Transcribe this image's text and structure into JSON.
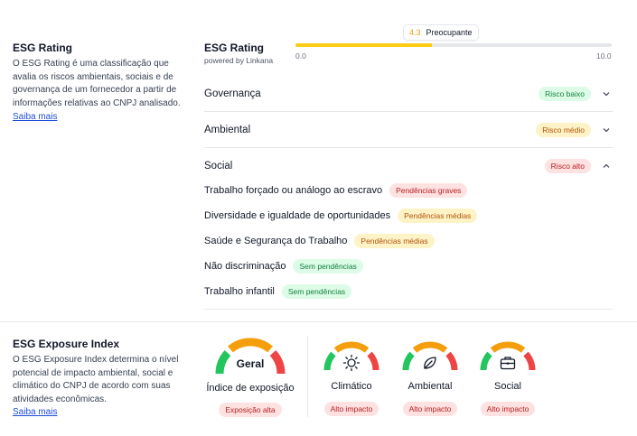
{
  "rating_section": {
    "title": "ESG Rating",
    "description": "O ESG Rating é uma classificação que avalia os riscos ambientais, sociais e de governança de um fornecedor a partir de informações relativas ao CNPJ analisado.",
    "link": "Saiba mais"
  },
  "rating_header": {
    "title": "ESG Rating",
    "powered": "powered by Linkana",
    "score": "4.3",
    "score_label": "Preocupante",
    "score_fraction": 0.43,
    "scale_min": "0.0",
    "scale_max": "10.0"
  },
  "accordion": [
    {
      "label": "Governança",
      "badge": "Risco baixo",
      "tone": "green",
      "expanded": false
    },
    {
      "label": "Ambiental",
      "badge": "Risco médio",
      "tone": "amber",
      "expanded": false
    },
    {
      "label": "Social",
      "badge": "Risco alto",
      "tone": "red",
      "expanded": true
    }
  ],
  "social_items": [
    {
      "label": "Trabalho forçado ou análogo ao escravo",
      "badge": "Pendências graves",
      "tone": "red"
    },
    {
      "label": "Diversidade e igualdade de oportunidades",
      "badge": "Pendências médias",
      "tone": "amber"
    },
    {
      "label": "Saúde e Segurança do Trabalho",
      "badge": "Pendências médias",
      "tone": "amber"
    },
    {
      "label": "Não discriminação",
      "badge": "Sem pendências",
      "tone": "green"
    },
    {
      "label": "Trabalho infantil",
      "badge": "Sem pendências",
      "tone": "green"
    }
  ],
  "exposure_section": {
    "title": "ESG Exposure Index",
    "description": "O ESG Exposure Index determina o nível potencial de impacto ambiental, social e climático do CNPJ de acordo com suas atividades econômicas.",
    "link": "Saiba mais"
  },
  "gauges": {
    "main": {
      "center": "Geral",
      "caption": "Índice de exposição",
      "badge": "Exposição alta"
    },
    "items": [
      {
        "caption": "Climático",
        "badge": "Alto impacto",
        "icon": "sun-icon"
      },
      {
        "caption": "Ambiental",
        "badge": "Alto impacto",
        "icon": "leaf-icon"
      },
      {
        "caption": "Social",
        "badge": "Alto impacto",
        "icon": "briefcase-icon"
      }
    ]
  },
  "colors": {
    "gauge_green": "#22c55e",
    "gauge_orange": "#f59e0b",
    "gauge_red": "#ef4444",
    "bar_fill": "#facc15"
  }
}
